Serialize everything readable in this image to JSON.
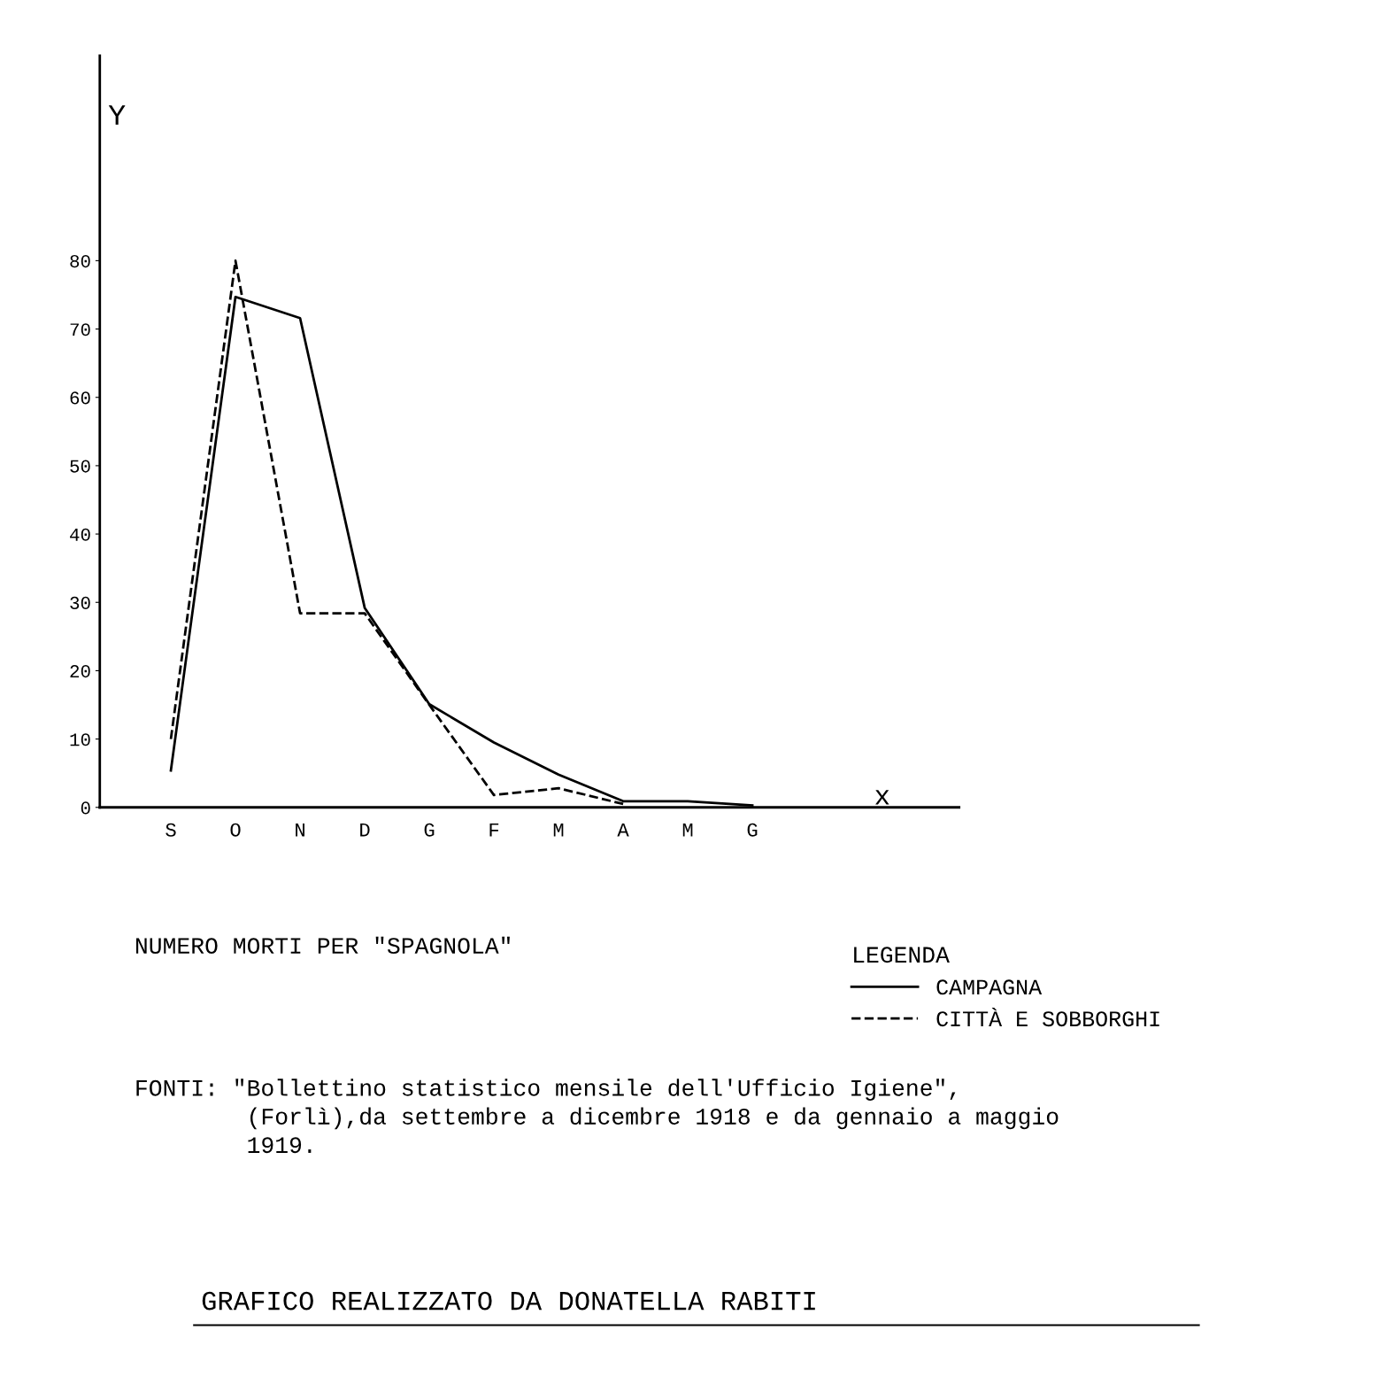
{
  "chart_data": {
    "type": "line",
    "title": "NUMERO MORTI PER \"SPAGNOLA\"",
    "xlabel": "x",
    "ylabel": "Y",
    "legend_title": "LEGENDA",
    "categories": [
      "S",
      "O",
      "N",
      "D",
      "G",
      "F",
      "M",
      "A",
      "M",
      "G"
    ],
    "series": [
      {
        "name": "CAMPAGNA",
        "color": "#000000",
        "line_style": "solid",
        "values": [
          5.4,
          74.7,
          71.6,
          29.2,
          15.1,
          9.5,
          4.8,
          0.9,
          0.9,
          0.3
        ]
      },
      {
        "name": "CITTÀ E SOBBORGHI",
        "color": "#000000",
        "line_style": "dashed",
        "values": [
          10,
          80,
          28.4,
          28.4,
          15,
          1.8,
          2.8,
          0.5,
          null,
          null
        ]
      }
    ],
    "ylim": [
      0,
      110
    ],
    "yticks": [
      0,
      10,
      20,
      30,
      40,
      50,
      60,
      70,
      80
    ],
    "grid": false,
    "legend": "bottom right",
    "marker": "none",
    "annotations": [
      "FONTI: \"Bollettino statistico mensile dell'Ufficio Igiene\",\n        (Forlì),da settembre a dicembre 1918 e da gennaio a maggio\n        1919.",
      "GRAFICO REALIZZATO DA DONATELLA RABITI"
    ]
  }
}
